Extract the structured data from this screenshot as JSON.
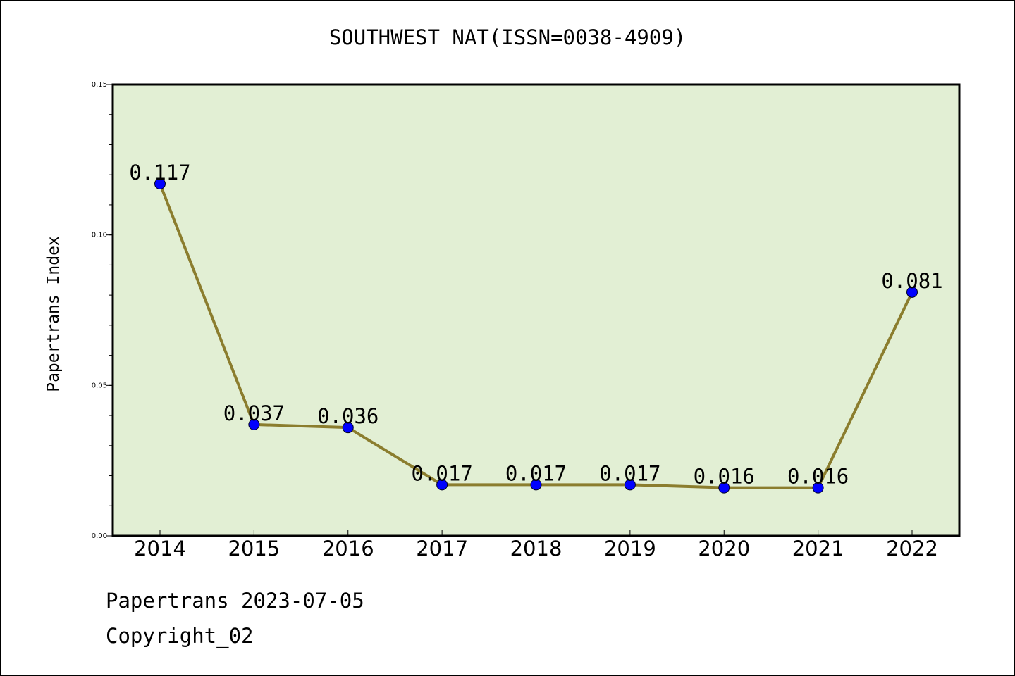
{
  "chart_data": {
    "type": "line",
    "title": "SOUTHWEST NAT(ISSN=0038-4909)",
    "xlabel": "",
    "ylabel": "Papertrans Index",
    "x": [
      "2014",
      "2015",
      "2016",
      "2017",
      "2018",
      "2019",
      "2020",
      "2021",
      "2022"
    ],
    "series": [
      {
        "values": [
          0.117,
          0.037,
          0.036,
          0.017,
          0.017,
          0.017,
          0.016,
          0.016,
          0.081
        ],
        "labels": [
          "0.117",
          "0.037",
          "0.036",
          "0.017",
          "0.017",
          "0.017",
          "0.016",
          "0.016",
          "0.081"
        ]
      }
    ],
    "ylim": [
      0,
      0.15
    ],
    "yticks": [
      "0.00",
      "0.05",
      "0.10",
      "0.15"
    ],
    "grid": false,
    "colors": {
      "line": "#8b7d2e",
      "marker": "#0000ff",
      "plot_bg": "#e2efd4"
    }
  },
  "footer": {
    "line1": "Papertrans 2023-07-05",
    "line2": "Copyright_02"
  }
}
